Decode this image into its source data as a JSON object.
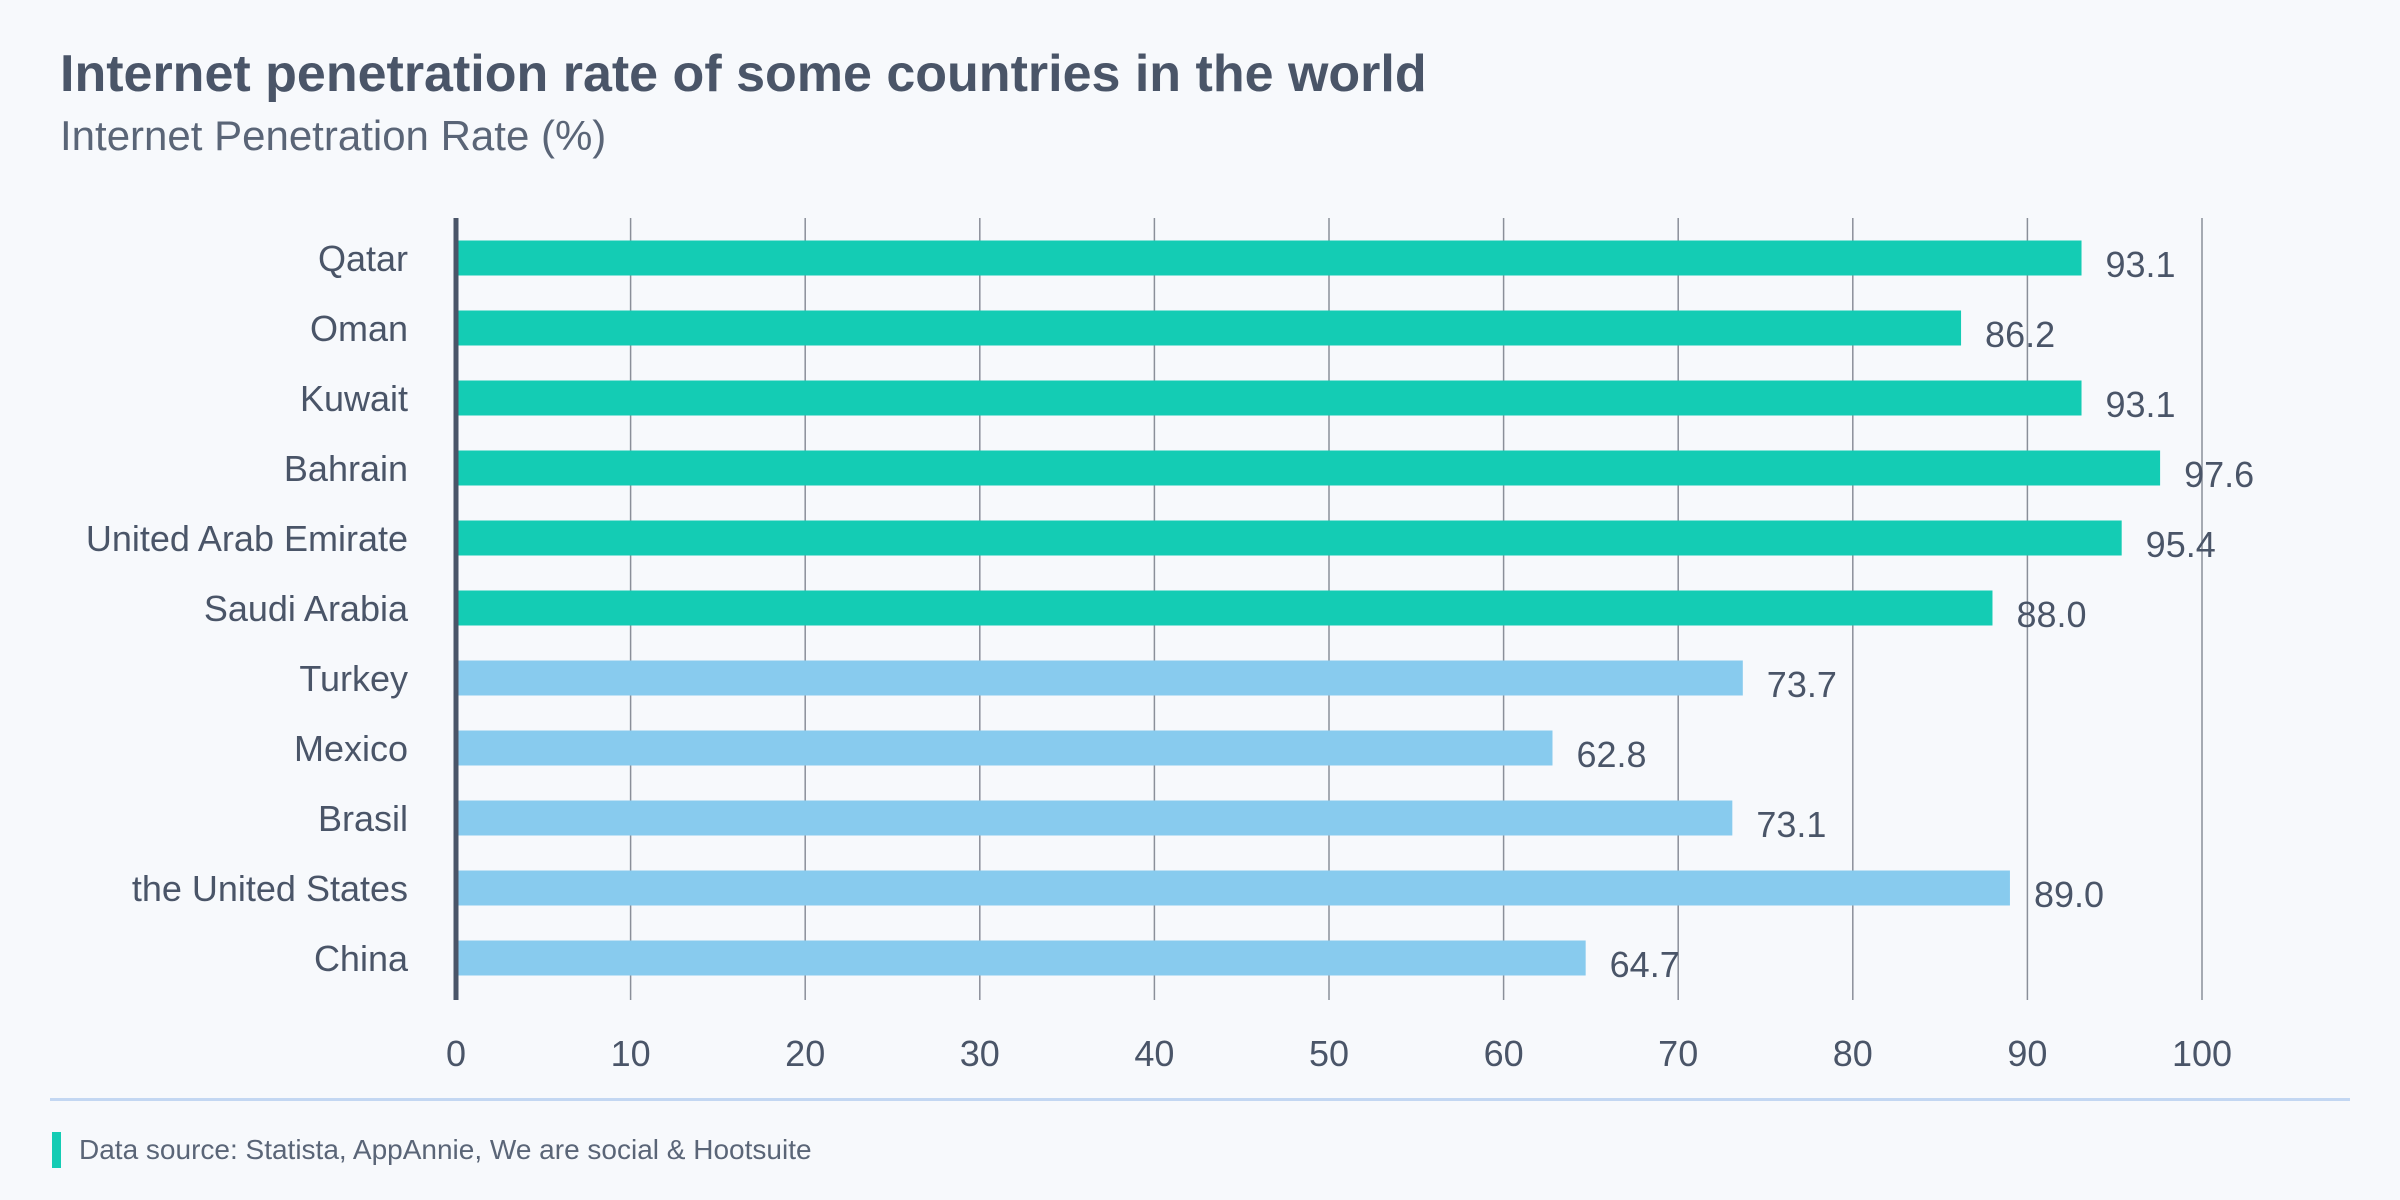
{
  "chart_data": {
    "type": "bar",
    "orientation": "horizontal",
    "title": "Internet penetration rate of some countries in the world",
    "subtitle": "Internet Penetration Rate (%)",
    "categories": [
      "Qatar",
      "Oman",
      "Kuwait",
      "Bahrain",
      "United Arab Emirate",
      "Saudi Arabia",
      "Turkey",
      "Mexico",
      "Brasil",
      "the United States",
      "China"
    ],
    "values": [
      93.1,
      86.2,
      93.1,
      97.6,
      95.4,
      88.0,
      73.7,
      62.8,
      73.1,
      89.0,
      64.7
    ],
    "value_labels": [
      "93.1",
      "86.2",
      "93.1",
      "97.6",
      "95.4",
      "88.0",
      "73.7",
      "62.8",
      "73.1",
      "89.0",
      "64.7"
    ],
    "bar_colors": [
      "#14ccb4",
      "#14ccb4",
      "#14ccb4",
      "#14ccb4",
      "#14ccb4",
      "#14ccb4",
      "#88cbee",
      "#88cbee",
      "#88cbee",
      "#88cbee",
      "#88cbee"
    ],
    "xlim": [
      0,
      100
    ],
    "xticks": [
      0,
      10,
      20,
      30,
      40,
      50,
      60,
      70,
      80,
      90,
      100
    ],
    "xlabel": "",
    "ylabel": "",
    "grid": true
  },
  "footer": {
    "source": "Data source: Statista, AppAnnie, We are social & Hootsuite"
  },
  "colors": {
    "accent": "#14ccb4",
    "secondary": "#88cbee",
    "text": "#4a5568",
    "grid": "#8a8f99",
    "axis": "#4a5568",
    "divider": "#c3d7f2"
  }
}
